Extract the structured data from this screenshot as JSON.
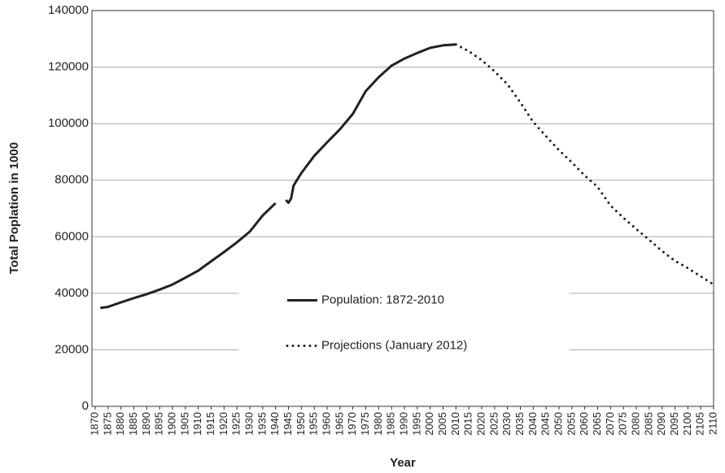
{
  "chart_data": {
    "type": "line",
    "x_label": "Year",
    "y_label": "Total Poplation in 1000",
    "xlim": [
      1870,
      2110
    ],
    "xticks": [
      1870,
      1875,
      1880,
      1885,
      1890,
      1895,
      1900,
      1905,
      1910,
      1915,
      1920,
      1925,
      1930,
      1935,
      1940,
      1945,
      1950,
      1955,
      1960,
      1965,
      1970,
      1975,
      1980,
      1985,
      1990,
      1995,
      2000,
      2005,
      2010,
      2015,
      2020,
      2025,
      2030,
      2035,
      2040,
      2045,
      2050,
      2055,
      2060,
      2065,
      2070,
      2075,
      2080,
      2085,
      2090,
      2095,
      2100,
      2105,
      2110
    ],
    "ylim": [
      0,
      140000
    ],
    "yticks": [
      0,
      20000,
      40000,
      60000,
      80000,
      100000,
      120000,
      140000
    ],
    "grid": true,
    "legend": "center",
    "series": [
      {
        "name": "Population: 1872-2010",
        "color": "#222222",
        "style": "solid",
        "x": [
          1872,
          1875,
          1880,
          1885,
          1890,
          1895,
          1900,
          1905,
          1910,
          1915,
          1920,
          1925,
          1930,
          1935,
          1940,
          1942,
          1944,
          1945,
          1946,
          1947,
          1950,
          1955,
          1960,
          1965,
          1970,
          1975,
          1980,
          1985,
          1990,
          1995,
          2000,
          2005,
          2010
        ],
        "values": [
          34800,
          35200,
          36800,
          38300,
          39700,
          41300,
          43100,
          45500,
          48000,
          51300,
          54600,
          58000,
          61800,
          67500,
          71900,
          null,
          73000,
          72000,
          73500,
          78100,
          82500,
          88600,
          93400,
          98000,
          103500,
          111500,
          116400,
          120500,
          123000,
          125000,
          126800,
          127700,
          128000
        ]
      },
      {
        "name": "Projections (January 2012)",
        "color": "#222222",
        "style": "dotted",
        "x": [
          2010,
          2015,
          2020,
          2025,
          2030,
          2035,
          2040,
          2045,
          2050,
          2055,
          2060,
          2065,
          2070,
          2075,
          2080,
          2085,
          2090,
          2095,
          2100,
          2105,
          2110
        ],
        "values": [
          128000,
          125600,
          122500,
          118500,
          113900,
          107500,
          100600,
          95500,
          90600,
          86300,
          81600,
          77600,
          71000,
          66700,
          62700,
          58900,
          54900,
          51500,
          48900,
          46000,
          43100
        ]
      }
    ]
  }
}
